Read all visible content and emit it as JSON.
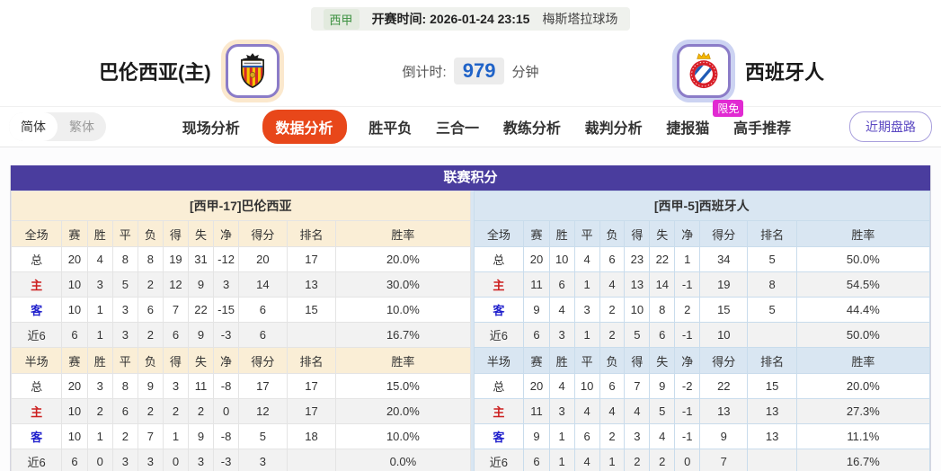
{
  "match": {
    "league": "西甲",
    "kickoff_label": "开赛时间:",
    "kickoff_time": "2026-01-24 23:15",
    "venue": "梅斯塔拉球场",
    "countdown_label": "倒计时:",
    "countdown_value": "979",
    "countdown_unit": "分钟",
    "home_team": "巴伦西亚(主)",
    "away_team": "西班牙人"
  },
  "nav": {
    "lang_simplified": "简体",
    "lang_traditional": "繁体",
    "tabs": [
      "现场分析",
      "数据分析",
      "胜平负",
      "三合一",
      "教练分析",
      "裁判分析",
      "捷报猫",
      "高手推荐"
    ],
    "active_tab": "数据分析",
    "badge": "限免",
    "recent_button": "近期盘路"
  },
  "stats": {
    "title": "联赛积分",
    "columns_full": [
      "全场",
      "赛",
      "胜",
      "平",
      "负",
      "得",
      "失",
      "净",
      "得分",
      "排名",
      "胜率"
    ],
    "columns_half": [
      "半场",
      "赛",
      "胜",
      "平",
      "负",
      "得",
      "失",
      "净",
      "得分",
      "排名",
      "胜率"
    ],
    "left": {
      "team_header": "[西甲-17]巴伦西亚",
      "full_rows": [
        {
          "label": "总",
          "values": [
            "20",
            "4",
            "8",
            "8",
            "19",
            "31",
            "-12",
            "20",
            "17",
            "20.0%"
          ]
        },
        {
          "label": "主",
          "values": [
            "10",
            "3",
            "5",
            "2",
            "12",
            "9",
            "3",
            "14",
            "13",
            "30.0%"
          ]
        },
        {
          "label": "客",
          "values": [
            "10",
            "1",
            "3",
            "6",
            "7",
            "22",
            "-15",
            "6",
            "15",
            "10.0%"
          ]
        },
        {
          "label": "近6",
          "values": [
            "6",
            "1",
            "3",
            "2",
            "6",
            "9",
            "-3",
            "6",
            "",
            "16.7%"
          ]
        }
      ],
      "half_rows": [
        {
          "label": "总",
          "values": [
            "20",
            "3",
            "8",
            "9",
            "3",
            "11",
            "-8",
            "17",
            "17",
            "15.0%"
          ]
        },
        {
          "label": "主",
          "values": [
            "10",
            "2",
            "6",
            "2",
            "2",
            "2",
            "0",
            "12",
            "17",
            "20.0%"
          ]
        },
        {
          "label": "客",
          "values": [
            "10",
            "1",
            "2",
            "7",
            "1",
            "9",
            "-8",
            "5",
            "18",
            "10.0%"
          ]
        },
        {
          "label": "近6",
          "values": [
            "6",
            "0",
            "3",
            "3",
            "0",
            "3",
            "-3",
            "3",
            "",
            "0.0%"
          ]
        }
      ]
    },
    "right": {
      "team_header": "[西甲-5]西班牙人",
      "full_rows": [
        {
          "label": "总",
          "values": [
            "20",
            "10",
            "4",
            "6",
            "23",
            "22",
            "1",
            "34",
            "5",
            "50.0%"
          ]
        },
        {
          "label": "主",
          "values": [
            "11",
            "6",
            "1",
            "4",
            "13",
            "14",
            "-1",
            "19",
            "8",
            "54.5%"
          ]
        },
        {
          "label": "客",
          "values": [
            "9",
            "4",
            "3",
            "2",
            "10",
            "8",
            "2",
            "15",
            "5",
            "44.4%"
          ]
        },
        {
          "label": "近6",
          "values": [
            "6",
            "3",
            "1",
            "2",
            "5",
            "6",
            "-1",
            "10",
            "",
            "50.0%"
          ]
        }
      ],
      "half_rows": [
        {
          "label": "总",
          "values": [
            "20",
            "4",
            "10",
            "6",
            "7",
            "9",
            "-2",
            "22",
            "15",
            "20.0%"
          ]
        },
        {
          "label": "主",
          "values": [
            "11",
            "3",
            "4",
            "4",
            "4",
            "5",
            "-1",
            "13",
            "13",
            "27.3%"
          ]
        },
        {
          "label": "客",
          "values": [
            "9",
            "1",
            "6",
            "2",
            "3",
            "4",
            "-1",
            "9",
            "13",
            "11.1%"
          ]
        },
        {
          "label": "近6",
          "values": [
            "6",
            "1",
            "4",
            "1",
            "2",
            "2",
            "0",
            "7",
            "",
            "16.7%"
          ]
        }
      ]
    }
  },
  "icons": {
    "home_logo": "valencia-crest-icon",
    "away_logo": "espanyol-crest-icon"
  },
  "colors": {
    "header_purple": "#4a3d9e",
    "home_header_cream": "#faeed6",
    "away_header_blue": "#d9e6f2",
    "active_tab_orange": "#e8471a",
    "badge_pink": "#e12ad2",
    "recent_button_purple": "#5b48c2",
    "home_row_red": "#cc2020",
    "away_row_blue": "#1f1fcc",
    "countdown_blue": "#2063c8",
    "league_green": "#3c9140"
  }
}
